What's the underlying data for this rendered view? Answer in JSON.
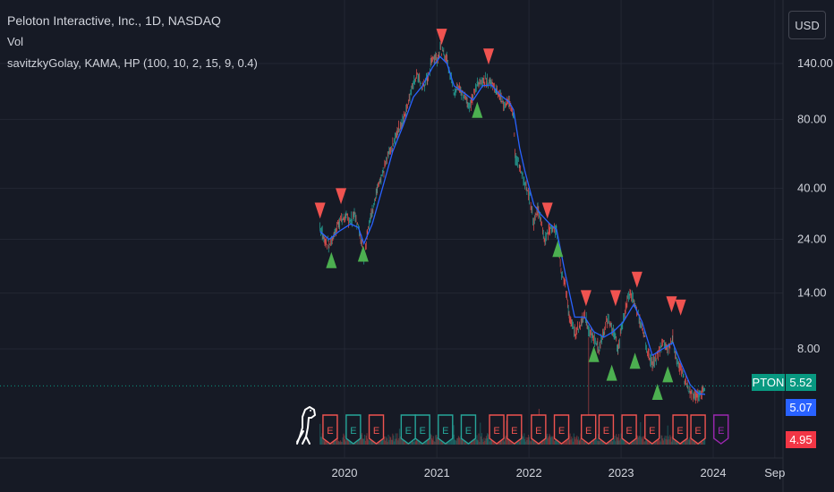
{
  "header": {
    "title": "Peloton Interactive, Inc., 1D, NASDAQ",
    "volume_label": "Vol",
    "indicator_label": "savitzkyGolay, KAMA, HP (100, 10, 2, 15, 9, 0.4)",
    "currency": "USD"
  },
  "labels": {
    "ticker": "PTON",
    "last_price": "5.52",
    "line_price": "5.07",
    "low_price": "4.95",
    "earnings_glyph": "E"
  },
  "colors": {
    "background": "#161a25",
    "grid": "#232733",
    "text": "#d1d4dc",
    "up": "#26a69a",
    "down": "#ef5350",
    "sell_marker": "#f05350",
    "buy_marker": "#4caf50",
    "kama_line": "#2962ff",
    "last_price_line": "#089981",
    "future_earnings": "#9c27b0",
    "badge_blue": "#2962ff",
    "badge_red": "#f23645"
  },
  "chart_data": {
    "type": "line",
    "symbol": "PTON",
    "interval": "1D",
    "exchange": "NASDAQ",
    "y_scale": "log",
    "y_ticks": [
      140,
      80,
      40,
      24,
      14,
      8
    ],
    "y_tick_labels": [
      "140.00",
      "80.00",
      "40.00",
      "24.00",
      "14.00",
      "8.00"
    ],
    "x_ticks": [
      "2020",
      "2021",
      "2022",
      "2023",
      "2024",
      "Sep"
    ],
    "x_tick_dates": [
      "2020-01-01",
      "2021-01-01",
      "2022-01-01",
      "2023-01-01",
      "2024-01-01",
      "2024-09-01"
    ],
    "grid": true,
    "series": [
      {
        "type": "candlestick",
        "points": [
          [
            "2019-09-26",
            27.0
          ],
          [
            "2019-10-15",
            24.0
          ],
          [
            "2019-11-01",
            22.5
          ],
          [
            "2019-11-20",
            25.0
          ],
          [
            "2019-12-10",
            28.5
          ],
          [
            "2020-01-05",
            30.0
          ],
          [
            "2020-01-25",
            29.0
          ],
          [
            "2020-02-10",
            31.0
          ],
          [
            "2020-02-25",
            27.0
          ],
          [
            "2020-03-10",
            23.0
          ],
          [
            "2020-03-18",
            20.0
          ],
          [
            "2020-04-01",
            26.0
          ],
          [
            "2020-04-20",
            32.0
          ],
          [
            "2020-05-10",
            40.0
          ],
          [
            "2020-05-30",
            45.0
          ],
          [
            "2020-06-20",
            55.0
          ],
          [
            "2020-07-10",
            62.0
          ],
          [
            "2020-07-31",
            72.0
          ],
          [
            "2020-08-20",
            80.0
          ],
          [
            "2020-09-10",
            95.0
          ],
          [
            "2020-09-30",
            115.0
          ],
          [
            "2020-10-15",
            125.0
          ],
          [
            "2020-11-05",
            110.0
          ],
          [
            "2020-11-25",
            120.0
          ],
          [
            "2020-12-15",
            150.0
          ],
          [
            "2021-01-05",
            148.0
          ],
          [
            "2021-01-14",
            165.0
          ],
          [
            "2021-01-25",
            155.0
          ],
          [
            "2021-02-10",
            145.0
          ],
          [
            "2021-02-25",
            125.0
          ],
          [
            "2021-03-10",
            105.0
          ],
          [
            "2021-03-25",
            110.0
          ],
          [
            "2021-04-10",
            105.0
          ],
          [
            "2021-04-25",
            100.0
          ],
          [
            "2021-05-10",
            90.0
          ],
          [
            "2021-05-25",
            100.0
          ],
          [
            "2021-06-10",
            115.0
          ],
          [
            "2021-07-01",
            118.0
          ],
          [
            "2021-07-20",
            120.0
          ],
          [
            "2021-08-05",
            115.0
          ],
          [
            "2021-08-25",
            105.0
          ],
          [
            "2021-09-10",
            100.0
          ],
          [
            "2021-09-25",
            92.0
          ],
          [
            "2021-10-15",
            95.0
          ],
          [
            "2021-11-01",
            85.0
          ],
          [
            "2021-11-08",
            55.0
          ],
          [
            "2021-11-25",
            50.0
          ],
          [
            "2021-12-15",
            42.0
          ],
          [
            "2022-01-05",
            36.0
          ],
          [
            "2022-01-20",
            28.0
          ],
          [
            "2022-02-05",
            33.0
          ],
          [
            "2022-02-15",
            30.0
          ],
          [
            "2022-03-05",
            24.0
          ],
          [
            "2022-03-25",
            27.0
          ],
          [
            "2022-04-20",
            26.0
          ],
          [
            "2022-05-10",
            17.0
          ],
          [
            "2022-05-25",
            15.0
          ],
          [
            "2022-06-10",
            11.0
          ],
          [
            "2022-07-01",
            9.5
          ],
          [
            "2022-07-20",
            10.0
          ],
          [
            "2022-08-10",
            11.5
          ],
          [
            "2022-08-25",
            9.5
          ],
          [
            "2022-09-15",
            9.0
          ],
          [
            "2022-10-05",
            8.0
          ],
          [
            "2022-10-25",
            9.5
          ],
          [
            "2022-11-10",
            11.0
          ],
          [
            "2022-12-01",
            9.5
          ],
          [
            "2022-12-20",
            8.0
          ],
          [
            "2023-01-10",
            11.0
          ],
          [
            "2023-02-05",
            14.0
          ],
          [
            "2023-02-20",
            13.0
          ],
          [
            "2023-03-10",
            11.0
          ],
          [
            "2023-03-25",
            10.0
          ],
          [
            "2023-04-15",
            8.0
          ],
          [
            "2023-05-05",
            6.8
          ],
          [
            "2023-05-25",
            7.5
          ],
          [
            "2023-06-15",
            8.5
          ],
          [
            "2023-07-05",
            8.0
          ],
          [
            "2023-07-25",
            9.0
          ],
          [
            "2023-08-10",
            7.0
          ],
          [
            "2023-08-25",
            6.5
          ],
          [
            "2023-09-15",
            5.8
          ],
          [
            "2023-10-01",
            5.2
          ],
          [
            "2023-10-20",
            5.0
          ],
          [
            "2023-11-05",
            4.95
          ],
          [
            "2023-11-20",
            5.3
          ],
          [
            "2023-11-30",
            5.52
          ]
        ]
      },
      {
        "type": "line",
        "points": [
          [
            "2019-09-26",
            26.0
          ],
          [
            "2019-11-01",
            24.0
          ],
          [
            "2019-12-10",
            26.0
          ],
          [
            "2020-01-25",
            28.0
          ],
          [
            "2020-02-25",
            27.0
          ],
          [
            "2020-03-18",
            23.0
          ],
          [
            "2020-04-20",
            28.0
          ],
          [
            "2020-05-30",
            40.0
          ],
          [
            "2020-07-10",
            58.0
          ],
          [
            "2020-08-20",
            75.0
          ],
          [
            "2020-09-30",
            100.0
          ],
          [
            "2020-11-05",
            112.0
          ],
          [
            "2020-12-15",
            135.0
          ],
          [
            "2021-01-14",
            150.0
          ],
          [
            "2021-02-10",
            140.0
          ],
          [
            "2021-03-10",
            112.0
          ],
          [
            "2021-04-25",
            103.0
          ],
          [
            "2021-05-25",
            97.0
          ],
          [
            "2021-07-01",
            112.0
          ],
          [
            "2021-08-05",
            113.0
          ],
          [
            "2021-09-10",
            102.0
          ],
          [
            "2021-10-15",
            95.0
          ],
          [
            "2021-11-01",
            88.0
          ],
          [
            "2021-11-25",
            60.0
          ],
          [
            "2021-12-15",
            48.0
          ],
          [
            "2022-01-20",
            34.0
          ],
          [
            "2022-02-15",
            31.0
          ],
          [
            "2022-03-25",
            28.0
          ],
          [
            "2022-04-20",
            26.5
          ],
          [
            "2022-05-25",
            17.0
          ],
          [
            "2022-07-01",
            11.0
          ],
          [
            "2022-08-10",
            11.0
          ],
          [
            "2022-09-15",
            9.5
          ],
          [
            "2022-10-25",
            9.0
          ],
          [
            "2022-12-01",
            9.5
          ],
          [
            "2023-01-10",
            10.5
          ],
          [
            "2023-02-20",
            12.5
          ],
          [
            "2023-03-25",
            10.5
          ],
          [
            "2023-05-05",
            7.5
          ],
          [
            "2023-06-15",
            8.0
          ],
          [
            "2023-07-25",
            8.5
          ],
          [
            "2023-08-25",
            7.0
          ],
          [
            "2023-10-01",
            5.6
          ],
          [
            "2023-11-05",
            5.1
          ],
          [
            "2023-11-30",
            5.07
          ]
        ]
      }
    ],
    "sell_markers": [
      [
        "2019-09-26",
        32
      ],
      [
        "2019-12-18",
        37
      ],
      [
        "2021-01-20",
        183
      ],
      [
        "2021-07-25",
        150
      ],
      [
        "2022-03-15",
        32
      ],
      [
        "2022-08-15",
        13.3
      ],
      [
        "2022-12-10",
        13.3
      ],
      [
        "2023-03-05",
        16
      ],
      [
        "2023-07-20",
        12.5
      ],
      [
        "2023-08-25",
        12.1
      ]
    ],
    "buy_markers": [
      [
        "2019-11-10",
        19.5
      ],
      [
        "2020-03-15",
        20.8
      ],
      [
        "2021-06-10",
        88
      ],
      [
        "2022-04-25",
        21.8
      ],
      [
        "2022-09-15",
        7.6
      ],
      [
        "2022-11-25",
        6.3
      ],
      [
        "2023-02-25",
        7.1
      ],
      [
        "2023-05-25",
        5.2
      ],
      [
        "2023-07-05",
        6.2
      ]
    ],
    "earnings_events": [
      [
        "2019-11-05",
        "past-down"
      ],
      [
        "2020-02-05",
        "past-up"
      ],
      [
        "2020-05-06",
        "past-down"
      ],
      [
        "2020-09-10",
        "past-up"
      ],
      [
        "2020-11-05",
        "past-up"
      ],
      [
        "2021-02-04",
        "past-up"
      ],
      [
        "2021-05-06",
        "past-up"
      ],
      [
        "2021-08-26",
        "past-down"
      ],
      [
        "2021-11-04",
        "past-down"
      ],
      [
        "2022-02-08",
        "past-down"
      ],
      [
        "2022-05-10",
        "past-down"
      ],
      [
        "2022-08-25",
        "past-down"
      ],
      [
        "2022-11-03",
        "past-down"
      ],
      [
        "2023-02-02",
        "past-down"
      ],
      [
        "2023-05-04",
        "past-down"
      ],
      [
        "2023-08-23",
        "past-down"
      ],
      [
        "2023-11-02",
        "past-down"
      ],
      [
        "2024-02-01",
        "future"
      ]
    ],
    "last_price": 5.52,
    "price_line_value": 5.07,
    "low_value": 4.95
  }
}
